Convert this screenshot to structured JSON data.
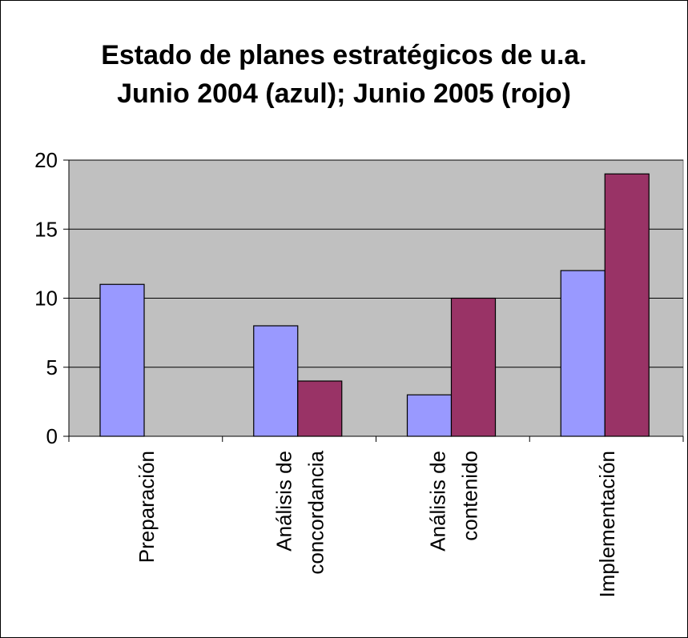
{
  "chart_data": {
    "type": "bar",
    "title_lines": [
      "Estado de planes estratégicos de u.a.",
      "Junio 2004 (azul); Junio 2005 (rojo)"
    ],
    "categories": [
      [
        "Preparación"
      ],
      [
        "Análisis de",
        "concordancia"
      ],
      [
        "Análisis de",
        "contenido"
      ],
      [
        "Implementación"
      ]
    ],
    "series": [
      {
        "values": [
          11,
          8,
          3,
          12
        ],
        "color": "#9999ff"
      },
      {
        "values": [
          0,
          4,
          10,
          19
        ],
        "color": "#993366"
      }
    ],
    "yticks": [
      0,
      5,
      10,
      15,
      20
    ],
    "ylim": [
      0,
      20
    ],
    "grid": true,
    "plot_background": "#c0c0c0"
  }
}
